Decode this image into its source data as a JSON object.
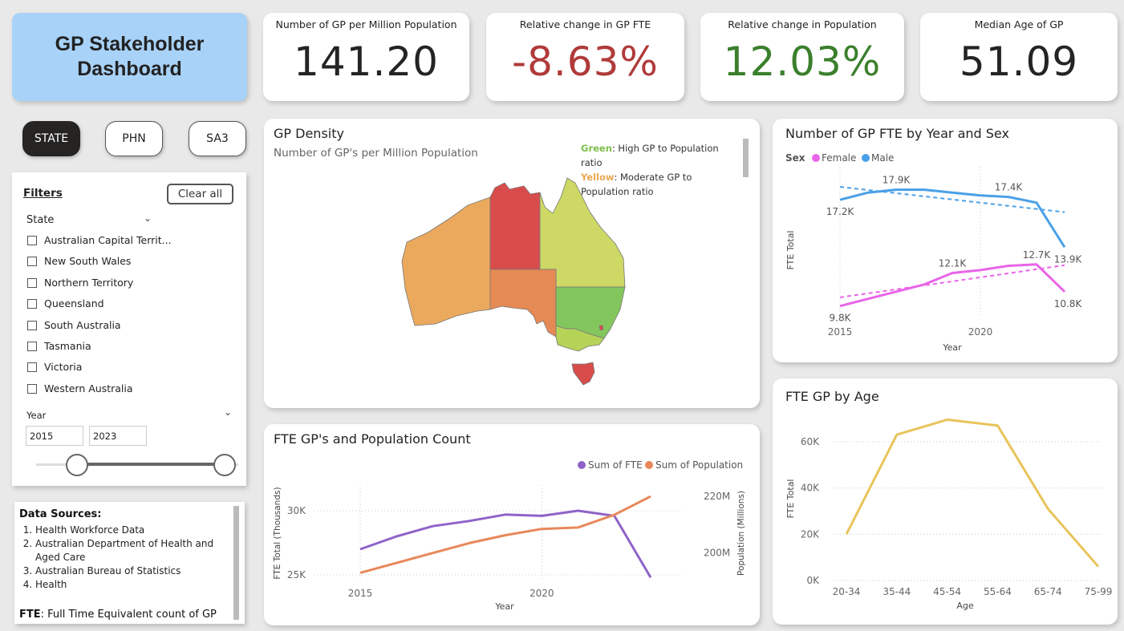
{
  "header": {
    "title_line1": "GP Stakeholder",
    "title_line2": "Dashboard"
  },
  "kpis": [
    {
      "label": "Number of GP per Million Population",
      "value": "141.20",
      "color": "#252423"
    },
    {
      "label": "Relative change in GP FTE",
      "value": "-8.63%",
      "color": "#b03a3a"
    },
    {
      "label": "Relative change in Population",
      "value": "12.03%",
      "color": "#3b7f2c"
    },
    {
      "label": "Median Age of GP",
      "value": "51.09",
      "color": "#252423"
    }
  ],
  "tabs": [
    {
      "label": "STATE",
      "active": true
    },
    {
      "label": "PHN",
      "active": false
    },
    {
      "label": "SA3",
      "active": false
    }
  ],
  "filters": {
    "title": "Filters",
    "clear_label": "Clear all",
    "state_label": "State",
    "states": [
      "Australian Capital Territ...",
      "New South Wales",
      "Northern Territory",
      "Queensland",
      "South Australia",
      "Tasmania",
      "Victoria",
      "Western Australia"
    ],
    "year_label": "Year",
    "year_from": "2015",
    "year_to": "2023"
  },
  "sources": {
    "heading": "Data Sources",
    "items": [
      "Health Workforce Data",
      "Australian Department of Health and Aged Care",
      "Australian Bureau of Statistics",
      "Health"
    ],
    "fte_term": "FTE",
    "fte_def": ": Full Time Equivalent count of GP"
  },
  "density": {
    "title": "GP Density",
    "subtitle": "Number of GP's per Million Population",
    "legend_green_word": "Green",
    "legend_green_text": ": High GP to Population ratio",
    "legend_yellow_word": "Yellow",
    "legend_yellow_text": ": Moderate GP to Population ratio",
    "state_colors": {
      "WA": "#eba95e",
      "NT": "#d94c4c",
      "QLD": "#cdd865",
      "SA": "#e68a55",
      "NSW": "#84c65e",
      "VIC": "#b5d357",
      "TAS": "#d94c4c",
      "ACT": "#d94c4c"
    }
  },
  "chart_data": [
    {
      "id": "fte_by_sex",
      "type": "line",
      "title": "Number of GP FTE by Year and Sex",
      "legend_title": "Sex",
      "xlabel": "Year",
      "ylabel": "FTE Total",
      "x": [
        2015,
        2016,
        2017,
        2018,
        2019,
        2020,
        2021,
        2022,
        2023
      ],
      "x_ticks": [
        2015,
        2020
      ],
      "ylim": [
        9000,
        19500
      ],
      "series": [
        {
          "name": "Female",
          "color": "#e865e8",
          "values": [
            9800,
            10300,
            10800,
            11300,
            12100,
            12300,
            12600,
            12700,
            10800
          ],
          "trend": [
            10400,
            10680,
            10960,
            11240,
            11520,
            11800,
            12080,
            12360,
            12640
          ],
          "labels": [
            {
              "i": 0,
              "text": "9.8K"
            },
            {
              "i": 4,
              "text": "12.1K"
            },
            {
              "i": 7,
              "text": "12.7K"
            },
            {
              "i": 8,
              "text": "10.8K"
            }
          ]
        },
        {
          "name": "Male",
          "color": "#4aa0e8",
          "values": [
            17200,
            17700,
            17900,
            17900,
            17700,
            17500,
            17400,
            17000,
            13900
          ],
          "trend": [
            18100,
            17880,
            17660,
            17440,
            17220,
            17000,
            16780,
            16560,
            16340
          ],
          "labels": [
            {
              "i": 0,
              "text": "17.2K"
            },
            {
              "i": 2,
              "text": "17.9K"
            },
            {
              "i": 6,
              "text": "17.4K"
            },
            {
              "i": 8,
              "text": "13.9K"
            }
          ]
        }
      ]
    },
    {
      "id": "fte_and_population",
      "type": "line",
      "title": "FTE GP's and Population Count",
      "xlabel": "Year",
      "ylabel": "FTE Total (Thousands)",
      "y2label": "Population (Millions)",
      "x": [
        2015,
        2016,
        2017,
        2018,
        2019,
        2020,
        2021,
        2022,
        2023
      ],
      "x_ticks": [
        2015,
        2020
      ],
      "y_ticks": [
        "25K",
        "30K"
      ],
      "y2_ticks": [
        "200M",
        "220M"
      ],
      "ylim": [
        24500,
        32000
      ],
      "y2lim": [
        190,
        224
      ],
      "series": [
        {
          "name": "Sum of FTE",
          "color": "#8f63c8",
          "axis": "left",
          "values": [
            27000,
            28000,
            28800,
            29200,
            29700,
            29600,
            30000,
            29600,
            24800
          ]
        },
        {
          "name": "Sum of Population",
          "color": "#e8885a",
          "axis": "right",
          "values": [
            193.0,
            196.5,
            200.0,
            203.5,
            206.3,
            208.5,
            209.0,
            213.5,
            220.0
          ]
        }
      ]
    },
    {
      "id": "fte_by_age",
      "type": "line",
      "title": "FTE GP by Age",
      "xlabel": "Age",
      "ylabel": "FTE Total",
      "categories": [
        "20-34",
        "35-44",
        "45-54",
        "55-64",
        "65-74",
        "75-99"
      ],
      "y_ticks": [
        "0K",
        "20K",
        "40K",
        "60K"
      ],
      "ylim": [
        0,
        70000
      ],
      "series": [
        {
          "name": "FTE Total",
          "color": "#e8c45a",
          "values": [
            20000,
            63000,
            69500,
            67000,
            31000,
            6000
          ]
        }
      ]
    }
  ]
}
